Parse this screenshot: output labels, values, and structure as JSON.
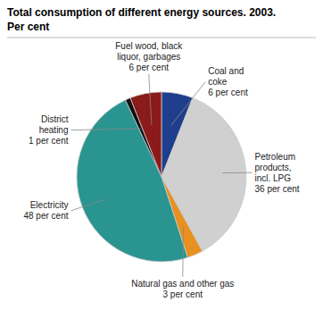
{
  "chart_data": {
    "type": "pie",
    "title": "Total consumption of different energy sources. 2003.",
    "subtitle": "Per cent",
    "categories": [
      "Coal and\ncoke\n6 per cent",
      "Petroleum\nproducts,\nincl. LPG\n36 per cent",
      "Natural gas and other gas\n3 per cent",
      "Electricity\n48 per cent",
      "District\nheating\n1 per cent",
      "Fuel wood, black\nliquor, garbages\n6 per cent"
    ],
    "values": [
      6,
      36,
      3,
      48,
      1,
      6
    ],
    "colors": [
      "#1f3e8c",
      "#d0d0d0",
      "#e89020",
      "#2a9490",
      "#111111",
      "#8b1a1a"
    ]
  }
}
